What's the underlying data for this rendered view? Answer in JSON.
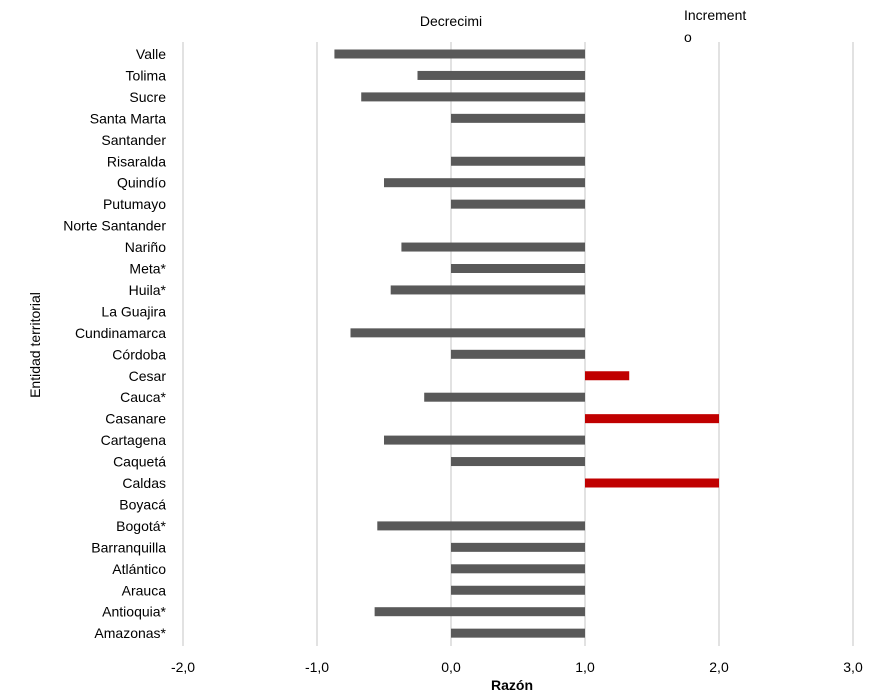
{
  "chart_data": {
    "type": "bar",
    "orientation": "horizontal",
    "title": "",
    "xlabel": "Razón",
    "ylabel": "Entidad territorial",
    "xlim": [
      -2,
      3
    ],
    "xticks": [
      -2,
      -1,
      0,
      1,
      2,
      3
    ],
    "xtick_labels": [
      "-2,0",
      "-1,0",
      "0,0",
      "1,0",
      "2,0",
      "3,0"
    ],
    "bar_base": 1,
    "grid": "vertical",
    "legend": "none",
    "annotations": [
      {
        "text_lines": [
          "Decrecimi"
        ],
        "x": 0.0
      },
      {
        "text_lines": [
          "Increment",
          "o"
        ],
        "x": 1.8
      }
    ],
    "colors": {
      "decrease": "#595959",
      "increase": "#c00000",
      "grid": "#d9d9d9"
    },
    "categories": [
      "Valle",
      "Tolima",
      "Sucre",
      "Santa Marta",
      "Santander",
      "Risaralda",
      "Quindío",
      "Putumayo",
      "Norte Santander",
      "Nariño",
      "Meta*",
      "Huila*",
      "La Guajira",
      "Cundinamarca",
      "Córdoba",
      "Cesar",
      "Cauca*",
      "Casanare",
      "Cartagena",
      "Caquetá",
      "Caldas",
      "Boyacá",
      "Bogotá*",
      "Barranquilla",
      "Atlántico",
      "Arauca",
      "Antioquia*",
      "Amazonas*"
    ],
    "values": [
      -0.87,
      -0.25,
      -0.67,
      0.0,
      null,
      0.0,
      -0.5,
      0.0,
      null,
      -0.37,
      0.0,
      -0.45,
      null,
      -0.75,
      0.0,
      1.33,
      -0.2,
      2.0,
      -0.5,
      0.0,
      2.0,
      null,
      -0.55,
      0.0,
      0.0,
      0.0,
      -0.57,
      0.0
    ]
  }
}
